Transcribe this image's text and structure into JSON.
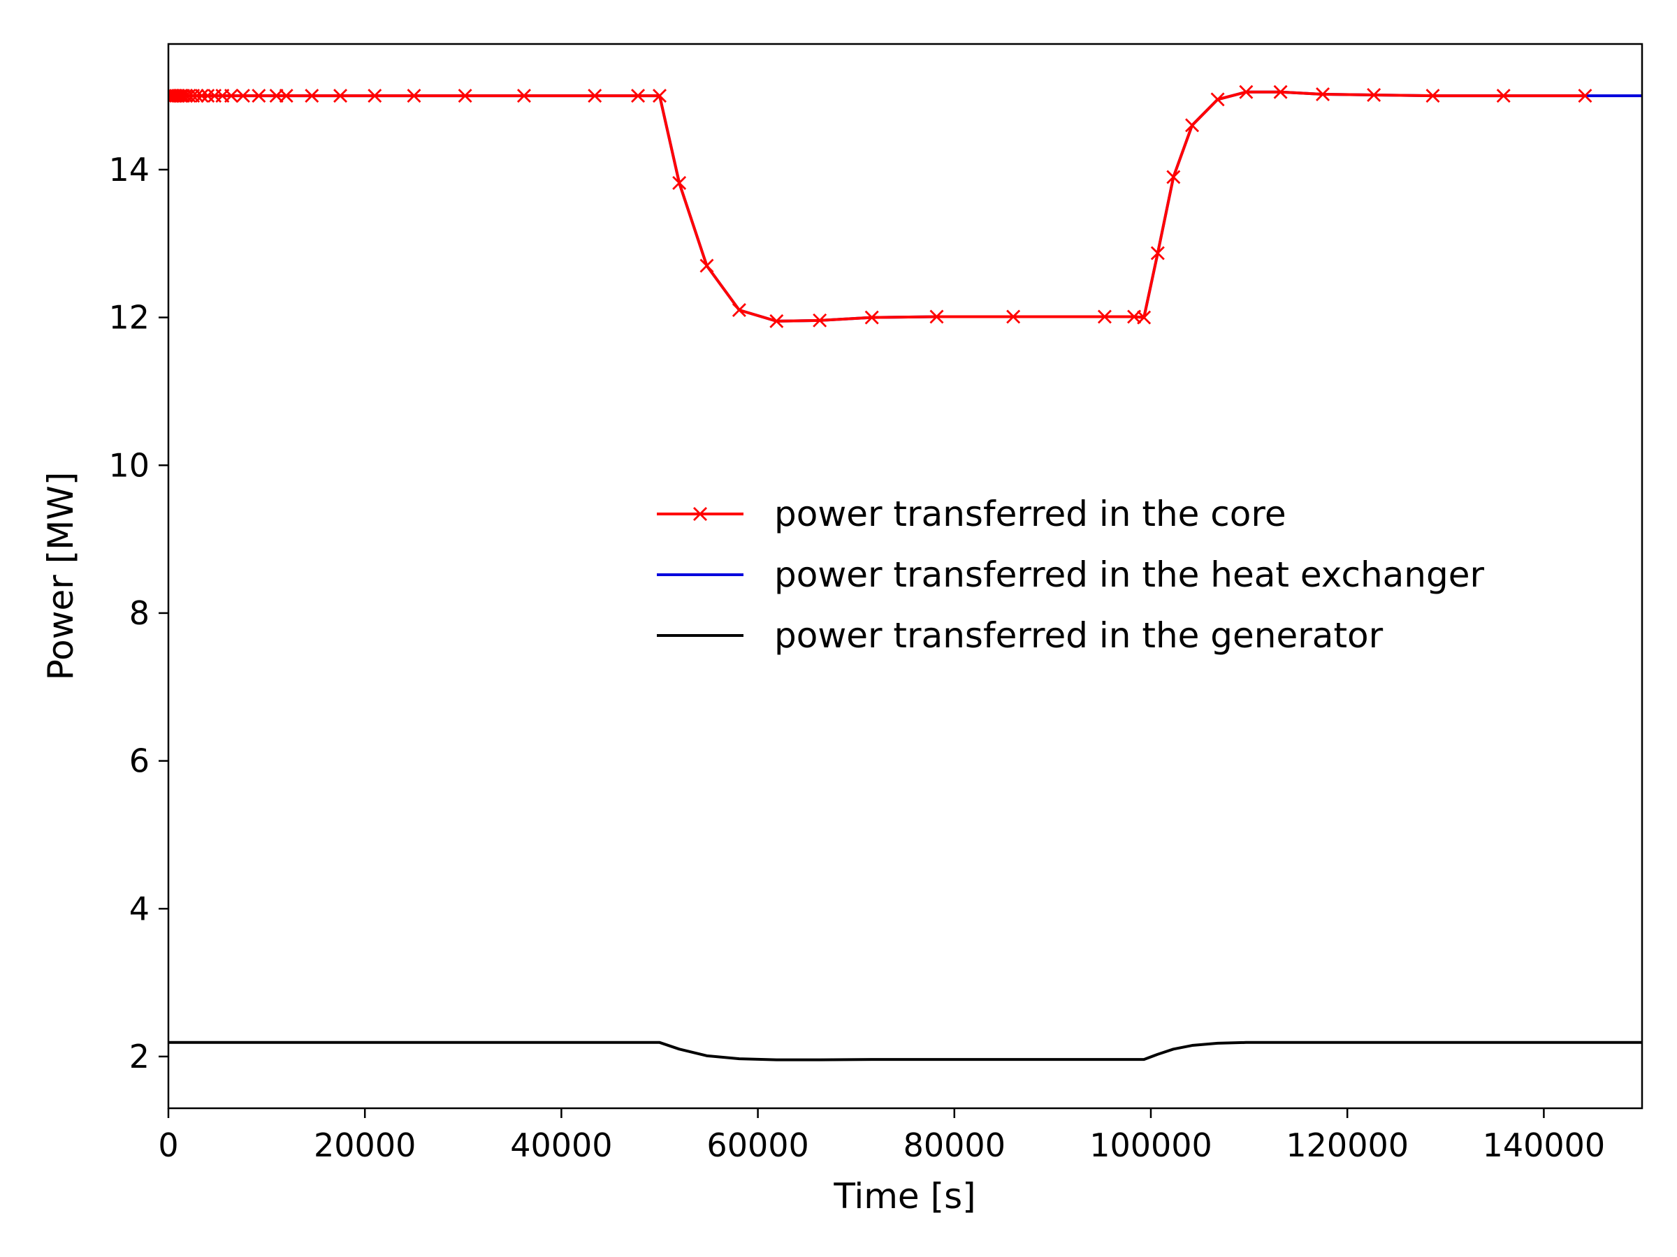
{
  "chart_data": {
    "type": "line",
    "xlabel": "Time [s]",
    "ylabel": "Power [MW]",
    "xlim": [
      0,
      150000
    ],
    "ylim": [
      1.3,
      15.7
    ],
    "x_ticks": [
      0,
      20000,
      40000,
      60000,
      80000,
      100000,
      120000,
      140000
    ],
    "y_ticks": [
      2,
      4,
      6,
      8,
      10,
      12,
      14
    ],
    "grid": false,
    "legend_placement": "center-right",
    "series": [
      {
        "name": "power transferred in the core",
        "color": "#ff0000",
        "marker": "x",
        "line": true,
        "x": [
          0,
          150,
          300,
          450,
          600,
          800,
          1000,
          1250,
          1500,
          1800,
          2100,
          2500,
          2900,
          3400,
          4000,
          4700,
          5500,
          6400,
          7600,
          9200,
          11000,
          12000,
          14600,
          17500,
          21000,
          25000,
          30200,
          36200,
          43400,
          47800,
          50000,
          52000,
          54800,
          58100,
          61900,
          66300,
          71600,
          78200,
          86000,
          95300,
          98300,
          99300,
          100700,
          102300,
          104200,
          106800,
          109700,
          113200,
          117500,
          122700,
          128700,
          135900,
          144200
        ],
        "y": [
          15,
          15,
          15,
          15,
          15,
          15,
          15,
          15,
          15,
          15,
          15,
          15,
          15,
          15,
          15,
          15,
          15,
          15,
          15,
          15,
          15,
          15,
          15,
          15,
          15,
          15,
          15,
          15,
          15,
          15,
          15,
          13.82,
          12.7,
          12.1,
          11.95,
          11.96,
          12.0,
          12.01,
          12.01,
          12.01,
          12.01,
          12.0,
          12.87,
          13.9,
          14.6,
          14.95,
          15.05,
          15.05,
          15.02,
          15.01,
          15.0,
          15.0,
          15.0
        ]
      },
      {
        "name": "power transferred in the heat exchanger",
        "color": "#0000dd",
        "marker": "none",
        "line": true,
        "x": [
          0,
          50000,
          52000,
          54800,
          58100,
          61900,
          66300,
          71600,
          78200,
          86000,
          95300,
          98300,
          99300,
          100700,
          102300,
          104200,
          106800,
          109700,
          113200,
          117500,
          122700,
          128700,
          150000
        ],
        "y": [
          15,
          15,
          13.82,
          12.7,
          12.1,
          11.95,
          11.96,
          12.0,
          12.01,
          12.01,
          12.01,
          12.01,
          12.0,
          12.87,
          13.9,
          14.6,
          14.95,
          15.05,
          15.05,
          15.02,
          15.01,
          15.0,
          15.0
        ]
      },
      {
        "name": "power transferred in the generator",
        "color": "#000000",
        "marker": "none",
        "line": true,
        "x": [
          0,
          50000,
          52000,
          54800,
          58100,
          61900,
          66300,
          71600,
          78200,
          86000,
          95300,
          99300,
          100700,
          102300,
          104200,
          106800,
          109700,
          113200,
          117500,
          150000
        ],
        "y": [
          2.19,
          2.19,
          2.1,
          2.01,
          1.97,
          1.955,
          1.955,
          1.96,
          1.96,
          1.96,
          1.96,
          1.96,
          2.03,
          2.1,
          2.15,
          2.18,
          2.19,
          2.19,
          2.19,
          2.19
        ]
      }
    ]
  }
}
